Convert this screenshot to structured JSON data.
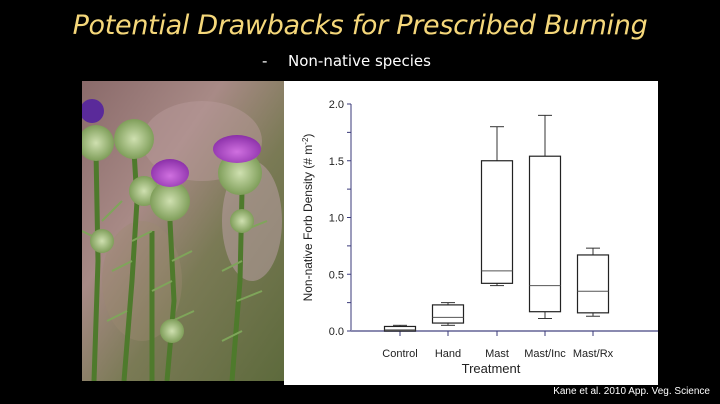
{
  "slide": {
    "title": "Potential Drawbacks for Prescribed Burning",
    "bullet_marker": "-",
    "bullet": "Non-native species",
    "citation": "Kane et al. 2010 App. Veg. Science",
    "colors": {
      "title": "#f5d77a",
      "background": "#000000",
      "text": "#ffffff",
      "axis": "#3a3a7a"
    }
  },
  "photo": {
    "subject": "thistle-plants-photo"
  },
  "chart_data": {
    "type": "box",
    "title": "",
    "xlabel": "Treatment",
    "ylabel": "Non-native Forb Density (# m-2)",
    "ylim": [
      0,
      2.0
    ],
    "yticks": [
      "0.0",
      "0.5",
      "1.0",
      "1.5",
      "2.0"
    ],
    "grid": false,
    "categories": [
      "Control",
      "Hand",
      "Mast",
      "Mast/Inc",
      "Mast/Rx"
    ],
    "series": [
      {
        "name": "Control",
        "whisker_low": 0.0,
        "q1": 0.0,
        "median": 0.01,
        "q3": 0.04,
        "whisker_high": 0.05
      },
      {
        "name": "Hand",
        "whisker_low": 0.05,
        "q1": 0.07,
        "median": 0.12,
        "q3": 0.23,
        "whisker_high": 0.25
      },
      {
        "name": "Mast",
        "whisker_low": 0.4,
        "q1": 0.42,
        "median": 0.53,
        "q3": 1.5,
        "whisker_high": 1.8
      },
      {
        "name": "Mast/Inc",
        "whisker_low": 0.11,
        "q1": 0.17,
        "median": 0.4,
        "q3": 1.54,
        "whisker_high": 1.9
      },
      {
        "name": "Mast/Rx",
        "whisker_low": 0.13,
        "q1": 0.16,
        "median": 0.35,
        "q3": 0.67,
        "whisker_high": 0.73
      }
    ]
  }
}
